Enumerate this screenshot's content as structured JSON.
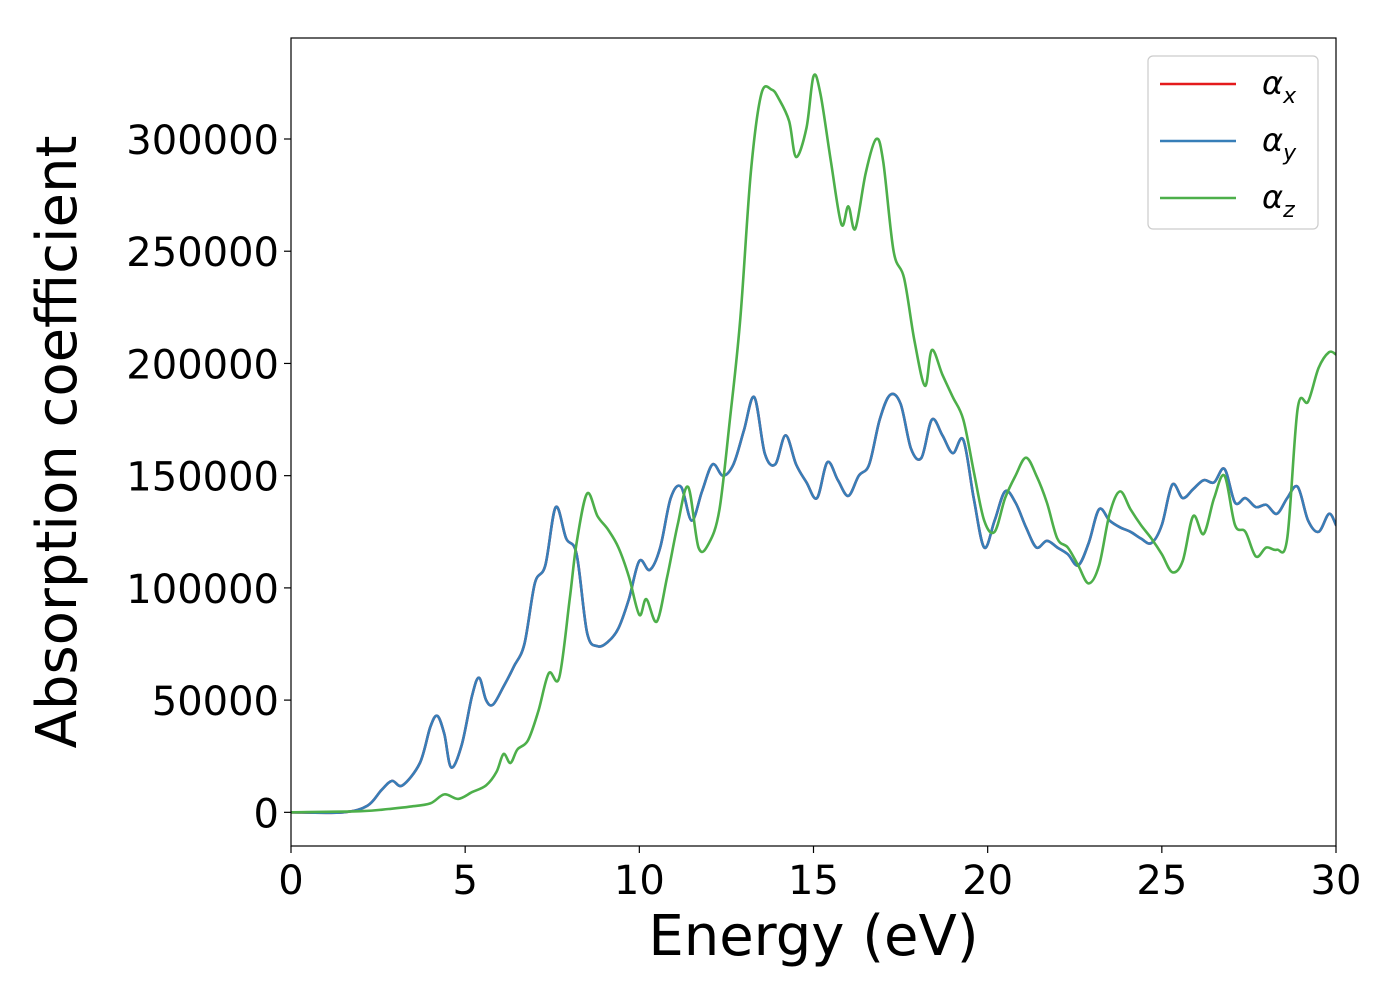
{
  "chart_data": {
    "type": "line",
    "title": "",
    "xlabel": "Energy (eV)",
    "ylabel": "Absorption coefficient",
    "xlim": [
      0,
      30
    ],
    "ylim": [
      -15000,
      345000
    ],
    "xticks": [
      0,
      5,
      10,
      15,
      20,
      25,
      30
    ],
    "yticks": [
      0,
      50000,
      100000,
      150000,
      200000,
      250000,
      300000
    ],
    "grid": false,
    "legend_position": "top-right",
    "series": [
      {
        "name": "αx",
        "color": "#e41a1c",
        "x": [
          0,
          1.5,
          2.2,
          2.6,
          2.9,
          3.2,
          3.7,
          4.0,
          4.2,
          4.4,
          4.6,
          4.9,
          5.2,
          5.4,
          5.6,
          5.8,
          6.1,
          6.4,
          6.7,
          7.0,
          7.3,
          7.6,
          7.9,
          8.2,
          8.5,
          8.8,
          9.1,
          9.4,
          9.7,
          10.0,
          10.3,
          10.6,
          10.9,
          11.2,
          11.5,
          11.8,
          12.1,
          12.4,
          12.7,
          13.0,
          13.3,
          13.6,
          13.9,
          14.2,
          14.5,
          14.8,
          15.1,
          15.4,
          15.7,
          16.0,
          16.3,
          16.6,
          16.9,
          17.2,
          17.5,
          17.8,
          18.1,
          18.4,
          18.7,
          19.0,
          19.3,
          19.6,
          19.9,
          20.2,
          20.5,
          20.8,
          21.1,
          21.4,
          21.7,
          22.0,
          22.3,
          22.6,
          22.9,
          23.2,
          23.5,
          23.8,
          24.1,
          24.4,
          24.7,
          25.0,
          25.3,
          25.6,
          25.9,
          26.2,
          26.5,
          26.8,
          27.1,
          27.4,
          27.7,
          28.0,
          28.3,
          28.6,
          28.9,
          29.2,
          29.5,
          29.8,
          30.0
        ],
        "y": [
          0,
          0,
          3000,
          10000,
          14000,
          12000,
          22000,
          38000,
          43000,
          35000,
          20000,
          30000,
          52000,
          60000,
          50000,
          48000,
          56000,
          65000,
          75000,
          102000,
          110000,
          136000,
          122000,
          115000,
          80000,
          74000,
          76000,
          82000,
          95000,
          112000,
          108000,
          118000,
          140000,
          145000,
          130000,
          143000,
          155000,
          150000,
          155000,
          170000,
          185000,
          160000,
          155000,
          168000,
          155000,
          147000,
          140000,
          156000,
          148000,
          141000,
          150000,
          155000,
          175000,
          186000,
          182000,
          162000,
          158000,
          175000,
          168000,
          160000,
          166000,
          140000,
          118000,
          130000,
          143000,
          138000,
          127000,
          118000,
          121000,
          118000,
          115000,
          110000,
          120000,
          135000,
          130000,
          127000,
          125000,
          122000,
          120000,
          128000,
          146000,
          140000,
          144000,
          148000,
          147000,
          153000,
          138000,
          140000,
          136000,
          137000,
          133000,
          140000,
          145000,
          130000,
          125000,
          133000,
          128000
        ]
      },
      {
        "name": "αy",
        "color": "#377eb8",
        "x": [
          0,
          1.5,
          2.2,
          2.6,
          2.9,
          3.2,
          3.7,
          4.0,
          4.2,
          4.4,
          4.6,
          4.9,
          5.2,
          5.4,
          5.6,
          5.8,
          6.1,
          6.4,
          6.7,
          7.0,
          7.3,
          7.6,
          7.9,
          8.2,
          8.5,
          8.8,
          9.1,
          9.4,
          9.7,
          10.0,
          10.3,
          10.6,
          10.9,
          11.2,
          11.5,
          11.8,
          12.1,
          12.4,
          12.7,
          13.0,
          13.3,
          13.6,
          13.9,
          14.2,
          14.5,
          14.8,
          15.1,
          15.4,
          15.7,
          16.0,
          16.3,
          16.6,
          16.9,
          17.2,
          17.5,
          17.8,
          18.1,
          18.4,
          18.7,
          19.0,
          19.3,
          19.6,
          19.9,
          20.2,
          20.5,
          20.8,
          21.1,
          21.4,
          21.7,
          22.0,
          22.3,
          22.6,
          22.9,
          23.2,
          23.5,
          23.8,
          24.1,
          24.4,
          24.7,
          25.0,
          25.3,
          25.6,
          25.9,
          26.2,
          26.5,
          26.8,
          27.1,
          27.4,
          27.7,
          28.0,
          28.3,
          28.6,
          28.9,
          29.2,
          29.5,
          29.8,
          30.0
        ],
        "y": [
          0,
          0,
          3000,
          10000,
          14000,
          12000,
          22000,
          38000,
          43000,
          35000,
          20000,
          30000,
          52000,
          60000,
          50000,
          48000,
          56000,
          65000,
          75000,
          102000,
          110000,
          136000,
          122000,
          115000,
          80000,
          74000,
          76000,
          82000,
          95000,
          112000,
          108000,
          118000,
          140000,
          145000,
          130000,
          143000,
          155000,
          150000,
          155000,
          170000,
          185000,
          160000,
          155000,
          168000,
          155000,
          147000,
          140000,
          156000,
          148000,
          141000,
          150000,
          155000,
          175000,
          186000,
          182000,
          162000,
          158000,
          175000,
          168000,
          160000,
          166000,
          140000,
          118000,
          130000,
          143000,
          138000,
          127000,
          118000,
          121000,
          118000,
          115000,
          110000,
          120000,
          135000,
          130000,
          127000,
          125000,
          122000,
          120000,
          128000,
          146000,
          140000,
          144000,
          148000,
          147000,
          153000,
          138000,
          140000,
          136000,
          137000,
          133000,
          140000,
          145000,
          130000,
          125000,
          133000,
          128000
        ]
      },
      {
        "name": "αz",
        "color": "#4daf4a",
        "x": [
          0,
          2.0,
          2.8,
          3.4,
          4.0,
          4.4,
          4.8,
          5.2,
          5.6,
          5.9,
          6.1,
          6.3,
          6.5,
          6.8,
          7.1,
          7.4,
          7.7,
          8.0,
          8.2,
          8.5,
          8.8,
          9.1,
          9.4,
          9.7,
          10.0,
          10.2,
          10.5,
          10.8,
          11.1,
          11.4,
          11.7,
          12.0,
          12.3,
          12.6,
          12.9,
          13.2,
          13.5,
          13.8,
          14.0,
          14.3,
          14.5,
          14.8,
          15.0,
          15.2,
          15.5,
          15.8,
          16.0,
          16.2,
          16.5,
          16.8,
          17.0,
          17.3,
          17.6,
          17.9,
          18.2,
          18.4,
          18.7,
          19.0,
          19.3,
          19.6,
          19.9,
          20.2,
          20.5,
          20.8,
          21.1,
          21.4,
          21.7,
          22.0,
          22.3,
          22.6,
          22.9,
          23.2,
          23.5,
          23.8,
          24.1,
          24.4,
          24.7,
          25.0,
          25.3,
          25.6,
          25.9,
          26.2,
          26.5,
          26.8,
          27.1,
          27.4,
          27.7,
          28.0,
          28.3,
          28.6,
          28.9,
          29.2,
          29.5,
          29.8,
          30.0
        ],
        "y": [
          0,
          500,
          1500,
          2500,
          4000,
          8000,
          6000,
          9000,
          12000,
          18000,
          26000,
          22000,
          28000,
          32000,
          45000,
          62000,
          60000,
          95000,
          120000,
          142000,
          132000,
          126000,
          118000,
          105000,
          88000,
          95000,
          85000,
          105000,
          128000,
          145000,
          118000,
          120000,
          135000,
          175000,
          220000,
          285000,
          320000,
          322000,
          318000,
          308000,
          292000,
          305000,
          328000,
          320000,
          290000,
          262000,
          270000,
          260000,
          285000,
          300000,
          290000,
          250000,
          238000,
          210000,
          190000,
          206000,
          195000,
          185000,
          175000,
          152000,
          130000,
          125000,
          140000,
          150000,
          158000,
          150000,
          138000,
          122000,
          118000,
          110000,
          102000,
          110000,
          133000,
          143000,
          135000,
          128000,
          122000,
          115000,
          107000,
          112000,
          132000,
          124000,
          140000,
          150000,
          128000,
          125000,
          114000,
          118000,
          117000,
          122000,
          180000,
          183000,
          198000,
          205000,
          204000
        ]
      }
    ]
  }
}
